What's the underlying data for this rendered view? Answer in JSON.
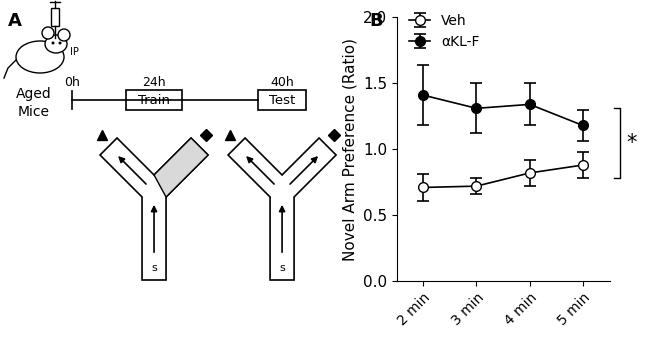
{
  "panel_labels": [
    "A",
    "B"
  ],
  "panel_a": {
    "injection": "IP",
    "group": "Aged\nMice",
    "timeline": [
      {
        "time": "0h"
      },
      {
        "time": "24h",
        "event": "Train"
      },
      {
        "time": "40h",
        "event": "Test"
      }
    ],
    "start_label": "s"
  },
  "chart_data": {
    "type": "line",
    "y_label": "Novel Arm Preference (Ratio)",
    "categories": [
      "2 min",
      "3 min",
      "4 min",
      "5 min"
    ],
    "series": [
      {
        "name": "Veh",
        "color": "#000000",
        "marker": "open_circle",
        "line_style": "solid",
        "values": [
          0.71,
          0.72,
          0.82,
          0.88
        ],
        "errors": [
          0.1,
          0.06,
          0.1,
          0.1
        ]
      },
      {
        "name": "αKL-F",
        "color": "#000000",
        "marker": "circle",
        "line_style": "solid",
        "values": [
          1.41,
          1.31,
          1.34,
          1.18
        ],
        "errors": [
          0.23,
          0.19,
          0.16,
          0.12
        ]
      }
    ],
    "ylim": [
      0,
      2.0
    ],
    "yticks": [
      {
        "value": 0,
        "label": "0.0"
      },
      {
        "value": 0.5,
        "label": "0.5"
      },
      {
        "value": 1.0,
        "label": "1.0"
      },
      {
        "value": 1.5,
        "label": "1.5"
      },
      {
        "value": 2.0,
        "label": "2.0"
      }
    ],
    "legend": "upper left",
    "annotations": [
      {
        "text": "*"
      }
    ]
  }
}
